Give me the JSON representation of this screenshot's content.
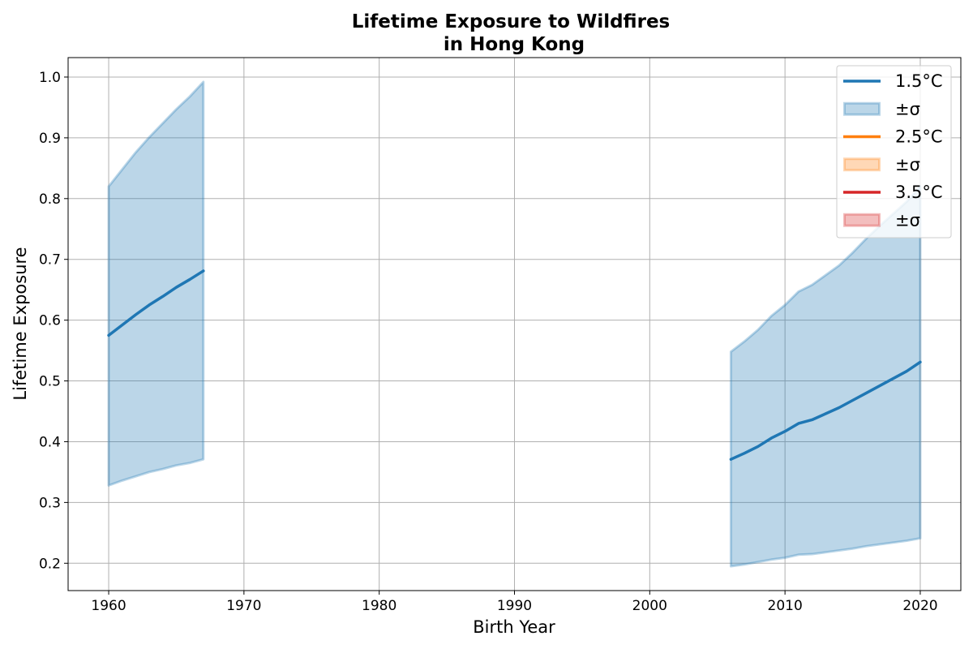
{
  "chart_data": {
    "type": "line",
    "title": "Lifetime Exposure to Wildfires",
    "subtitle": "in Hong Kong",
    "xlabel": "Birth Year",
    "ylabel": "Lifetime Exposure",
    "xlim": [
      1957,
      2023
    ],
    "ylim": [
      0.155,
      1.032
    ],
    "xticks": [
      1960,
      1970,
      1980,
      1990,
      2000,
      2010,
      2020
    ],
    "yticks": [
      0.2,
      0.3,
      0.4,
      0.5,
      0.6,
      0.7,
      0.8,
      0.9,
      1.0
    ],
    "xtick_labels": [
      "1960",
      "1970",
      "1980",
      "1990",
      "2000",
      "2010",
      "2020"
    ],
    "ytick_labels": [
      "0.2",
      "0.3",
      "0.4",
      "0.5",
      "0.6",
      "0.7",
      "0.8",
      "0.9",
      "1.0"
    ],
    "grid": true,
    "legend_position": "top-right",
    "series": [
      {
        "name": "1.5°C",
        "band_name": "±σ",
        "color": "#1f77b4",
        "segments": [
          {
            "x": [
              1960,
              1961,
              1962,
              1963,
              1964,
              1965,
              1966,
              1967
            ],
            "y": [
              0.575,
              0.592,
              0.609,
              0.625,
              0.639,
              0.654,
              0.667,
              0.681
            ],
            "lower": [
              0.328,
              0.336,
              0.343,
              0.35,
              0.355,
              0.361,
              0.365,
              0.371
            ],
            "upper": [
              0.82,
              0.848,
              0.876,
              0.901,
              0.924,
              0.947,
              0.968,
              0.992
            ]
          },
          {
            "x": [
              2006,
              2007,
              2008,
              2009,
              2010,
              2011,
              2012,
              2013,
              2014,
              2015,
              2016,
              2017,
              2018,
              2019,
              2020
            ],
            "y": [
              0.371,
              0.381,
              0.392,
              0.406,
              0.417,
              0.43,
              0.436,
              0.446,
              0.456,
              0.468,
              0.48,
              0.492,
              0.504,
              0.516,
              0.531
            ],
            "lower": [
              0.195,
              0.198,
              0.202,
              0.206,
              0.209,
              0.214,
              0.215,
              0.218,
              0.221,
              0.224,
              0.228,
              0.231,
              0.234,
              0.237,
              0.241
            ],
            "upper": [
              0.548,
              0.565,
              0.584,
              0.607,
              0.625,
              0.647,
              0.658,
              0.674,
              0.69,
              0.711,
              0.734,
              0.755,
              0.775,
              0.795,
              0.82
            ]
          }
        ]
      },
      {
        "name": "2.5°C",
        "band_name": "±σ",
        "color": "#ff7f0e",
        "segments": []
      },
      {
        "name": "3.5°C",
        "band_name": "±σ",
        "color": "#d62728",
        "segments": []
      }
    ]
  }
}
